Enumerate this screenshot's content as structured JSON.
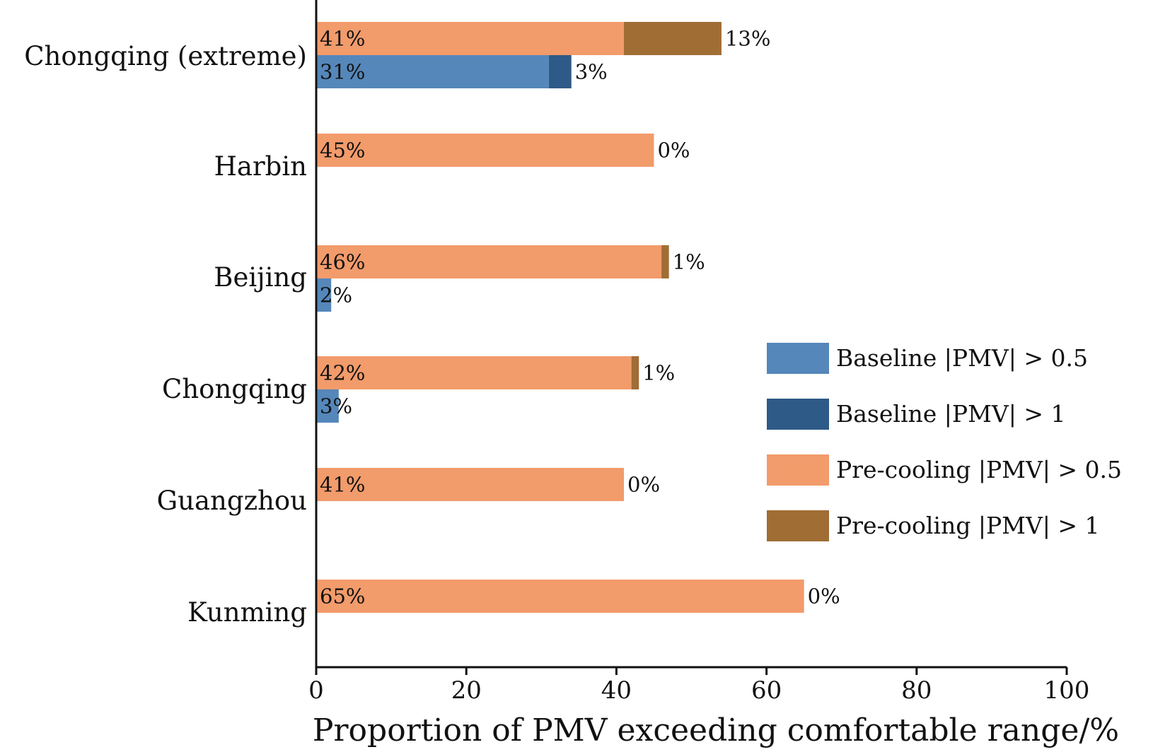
{
  "chart_data": {
    "type": "bar",
    "orientation": "horizontal",
    "stacked": true,
    "categories": [
      "Chongqing (extreme)",
      "Harbin",
      "Beijing",
      "Chongqing",
      "Guangzhou",
      "Kunming"
    ],
    "xlabel": "Proportion of PMV exceeding comfortable range/%",
    "xlim": [
      0,
      100
    ],
    "xticks": [
      "0",
      "20",
      "40",
      "60",
      "80",
      "100"
    ],
    "grid": false,
    "legend_position": "right",
    "groups": [
      {
        "name": "Baseline",
        "series": [
          {
            "name": "Baseline |PMV| > 0.5",
            "color": "#5587ba",
            "values": [
              31,
              null,
              2,
              3,
              null,
              null
            ]
          },
          {
            "name": "Baseline |PMV| > 1",
            "color": "#2e5a87",
            "values": [
              3,
              null,
              0,
              0,
              null,
              null
            ]
          }
        ],
        "inner_labels": [
          "31%",
          "",
          "2%",
          "3%",
          "",
          ""
        ],
        "outer_labels": [
          "3%",
          "",
          "",
          "",
          "",
          ""
        ]
      },
      {
        "name": "Pre-cooling",
        "series": [
          {
            "name": "Pre-cooling |PMV| > 0.5",
            "color": "#f29b6b",
            "values": [
              41,
              45,
              46,
              42,
              41,
              65
            ]
          },
          {
            "name": "Pre-cooling |PMV| > 1",
            "color": "#a06d35",
            "values": [
              13,
              0,
              1,
              1,
              0,
              0
            ]
          }
        ],
        "inner_labels": [
          "41%",
          "45%",
          "46%",
          "42%",
          "41%",
          "65%"
        ],
        "outer_labels": [
          "13%",
          "0%",
          "1%",
          "1%",
          "0%",
          "0%"
        ]
      }
    ],
    "legend": [
      {
        "label": "Baseline |PMV| > 0.5",
        "color": "#5587ba"
      },
      {
        "label": "Baseline |PMV| > 1",
        "color": "#2e5a87"
      },
      {
        "label": "Pre-cooling |PMV| > 0.5",
        "color": "#f29b6b"
      },
      {
        "label": "Pre-cooling |PMV| > 1",
        "color": "#a06d35"
      }
    ]
  }
}
